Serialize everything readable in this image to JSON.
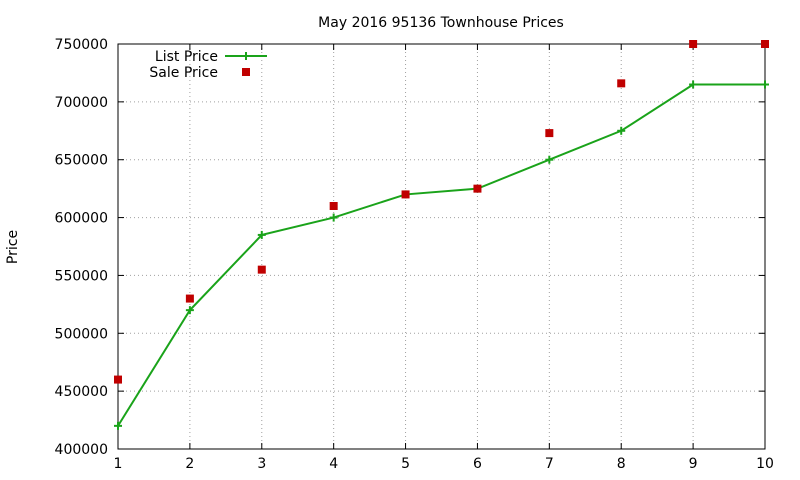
{
  "chart_data": {
    "type": "line",
    "title": "May 2016 95136 Townhouse Prices",
    "xlabel": "",
    "ylabel": "Price",
    "xlim": [
      1,
      10
    ],
    "ylim": [
      400000,
      750000
    ],
    "x_ticks": [
      "1",
      "2",
      "3",
      "4",
      "5",
      "6",
      "7",
      "8",
      "9",
      "10"
    ],
    "y_ticks": [
      "400000",
      "450000",
      "500000",
      "550000",
      "600000",
      "650000",
      "700000",
      "750000"
    ],
    "grid": true,
    "legend_position": "top-left",
    "series": [
      {
        "name": "List Price",
        "style": "line-plus",
        "color": "#1aa31a",
        "x": [
          1,
          2,
          3,
          4,
          5,
          6,
          7,
          8,
          9,
          10
        ],
        "values": [
          420000,
          520000,
          585000,
          600000,
          620000,
          625000,
          650000,
          675000,
          715000,
          715000
        ]
      },
      {
        "name": "Sale Price",
        "style": "square-markers",
        "color": "#c00000",
        "x": [
          1,
          2,
          3,
          4,
          5,
          6,
          7,
          8,
          9,
          10
        ],
        "values": [
          460000,
          530000,
          555000,
          610000,
          620000,
          625000,
          673000,
          716000,
          750000,
          750000
        ]
      }
    ]
  }
}
